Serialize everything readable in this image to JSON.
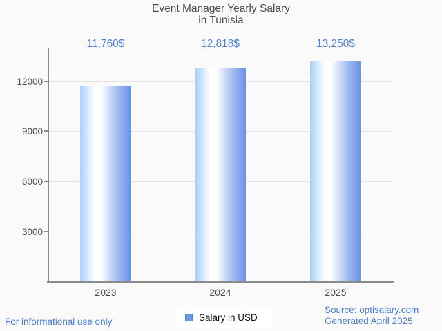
{
  "chart_data": {
    "type": "bar",
    "title": "Event Manager Yearly Salary in Tunisia",
    "title_lines": [
      "Event Manager Yearly Salary",
      "in Tunisia"
    ],
    "categories": [
      "2023",
      "2024",
      "2025"
    ],
    "values": [
      11760,
      12818,
      13250
    ],
    "value_labels": [
      "11,760$",
      "12,818$",
      "13,250$"
    ],
    "series": [
      {
        "name": "Salary in USD",
        "values": [
          11760,
          12818,
          13250
        ]
      }
    ],
    "y_tick_labels": [
      "12000",
      "9000",
      "6000",
      "3000"
    ],
    "y_ticks": [
      12000,
      9000,
      6000,
      3000
    ],
    "ylim": [
      0,
      14000
    ],
    "xlabel": "",
    "ylabel": "",
    "grid": true,
    "legend_position": "bottom-center",
    "colors": {
      "bar_gradient_left": "#a6d1fb",
      "bar_gradient_highlight": "#ffffff",
      "bar_gradient_right": "#6a92ea",
      "value_label_text": "#4b80d6",
      "axis_line": "#8a8a8a",
      "gridline": "#e4e4e4",
      "axis_text": "#4c4c4c",
      "background": "#fafafa"
    }
  },
  "legend": {
    "label": "Salary in USD",
    "swatch_color": "#6d96e0"
  },
  "footer": {
    "disclaimer": "For informational use only",
    "source": "Source: optisalary.com",
    "generated": "Generated April 2025",
    "text_color": "#4a7cd3"
  }
}
